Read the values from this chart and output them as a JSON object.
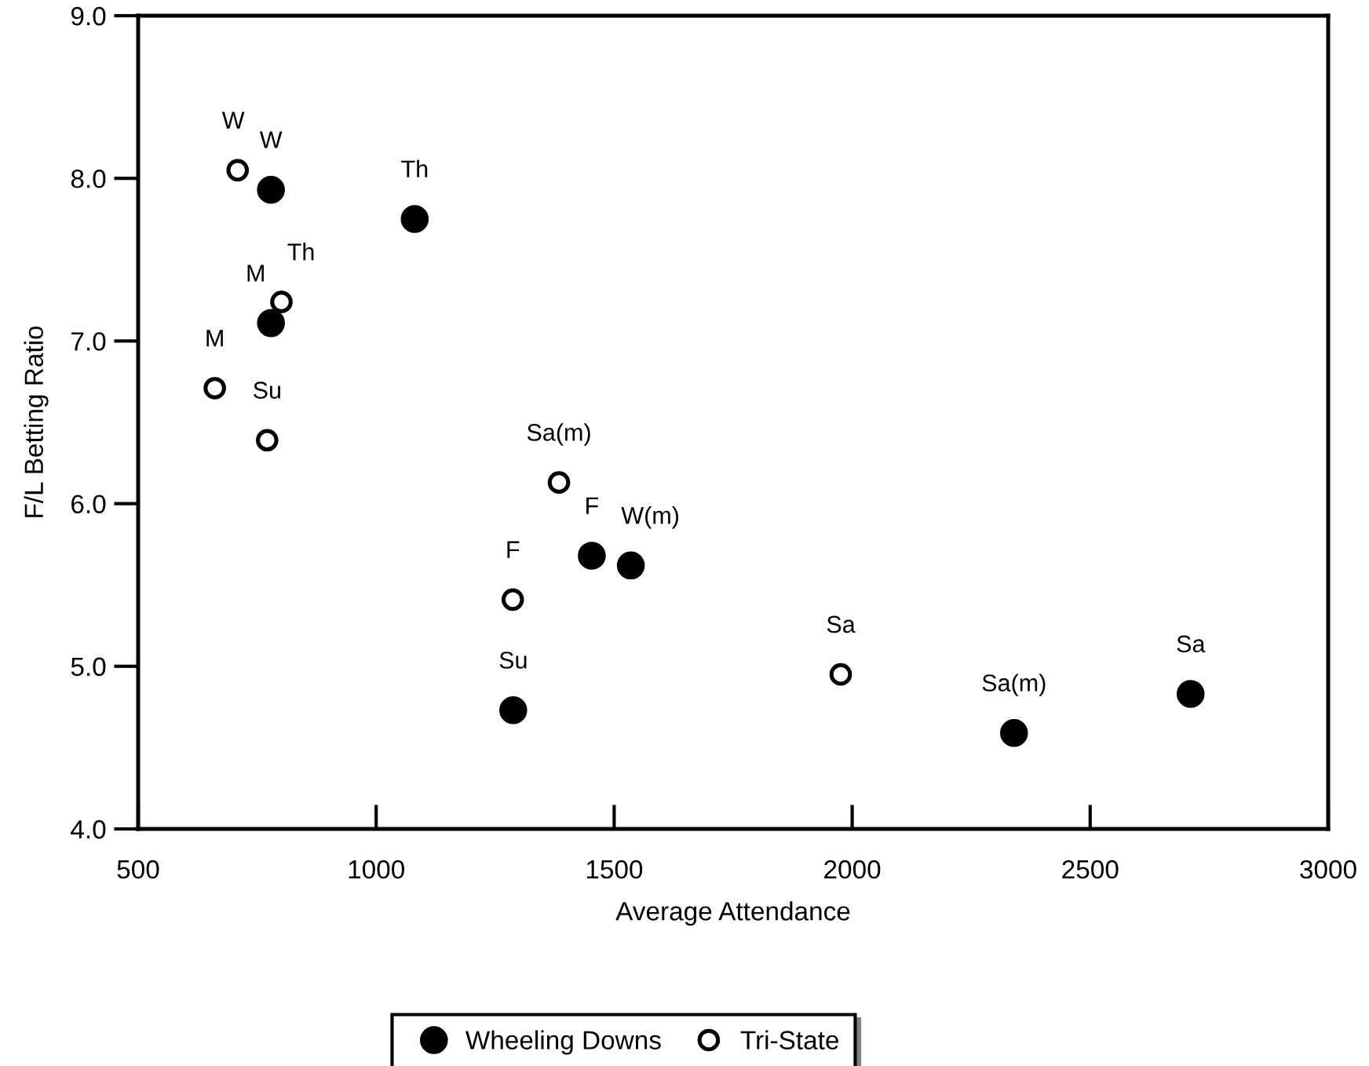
{
  "chart_data": {
    "type": "scatter",
    "xlabel": "Average Attendance",
    "ylabel": "F/L Betting Ratio",
    "xlim": [
      500,
      3000
    ],
    "xticks": [
      500,
      1000,
      1500,
      2000,
      2500,
      3000
    ],
    "ylim": [
      4,
      9
    ],
    "yticks": [
      {
        "value": 4,
        "label": "4.0"
      },
      {
        "value": 5,
        "label": "5.0"
      },
      {
        "value": 6,
        "label": "6.0"
      },
      {
        "value": 7,
        "label": "7.0"
      },
      {
        "value": 8,
        "label": "8.0"
      },
      {
        "value": 9,
        "label": "9.0"
      }
    ],
    "marker": "circle",
    "grid": false,
    "legend": "bottom",
    "series": [
      {
        "name": "Wheeling Downs",
        "color": "#000000",
        "x": [
          779,
          1081,
          779,
          1453,
          1535,
          1288,
          2340,
          2711
        ],
        "values": [
          7.93,
          7.75,
          7.11,
          5.68,
          5.62,
          4.73,
          4.59,
          4.83
        ]
      },
      {
        "name": "Tri-State",
        "color": "#ffffff",
        "x": [
          709,
          801,
          661,
          771,
          1384,
          1287,
          1976
        ],
        "values": [
          8.05,
          7.24,
          6.71,
          6.39,
          6.13,
          5.41,
          4.95
        ]
      }
    ],
    "annotations": [
      {
        "text": "W",
        "x": 779,
        "y": 7.93
      },
      {
        "text": "Th",
        "x": 1081,
        "y": 7.75
      },
      {
        "text": "M",
        "x": 779,
        "y": 7.11
      },
      {
        "text": "F",
        "x": 1453,
        "y": 5.68
      },
      {
        "text": "W(m)",
        "x": 1535,
        "y": 5.62
      },
      {
        "text": "Su",
        "x": 1288,
        "y": 4.73
      },
      {
        "text": "Sa(m)",
        "x": 2340,
        "y": 4.59
      },
      {
        "text": "Sa",
        "x": 2711,
        "y": 4.83
      },
      {
        "text": "W",
        "x": 709,
        "y": 8.05
      },
      {
        "text": "Th",
        "x": 801,
        "y": 7.24
      },
      {
        "text": "M",
        "x": 661,
        "y": 6.71
      },
      {
        "text": "Su",
        "x": 771,
        "y": 6.39
      },
      {
        "text": "Sa(m)",
        "x": 1384,
        "y": 6.13
      },
      {
        "text": "F",
        "x": 1287,
        "y": 5.41
      },
      {
        "text": "Sa",
        "x": 1976,
        "y": 4.95
      }
    ]
  }
}
